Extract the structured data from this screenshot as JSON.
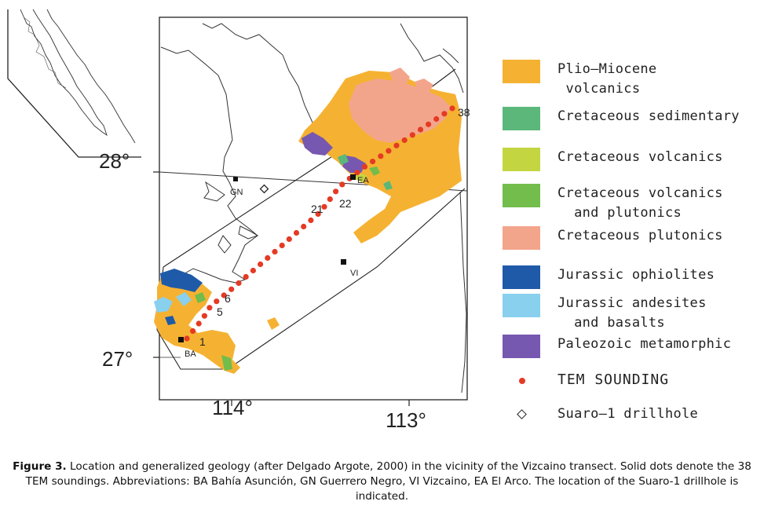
{
  "map": {
    "lat_labels": [
      "28°",
      "27°"
    ],
    "lon_labels": [
      "114°",
      "113°"
    ],
    "places": [
      {
        "abbr": "GN"
      },
      {
        "abbr": "EA"
      },
      {
        "abbr": "VI"
      },
      {
        "abbr": "BA"
      }
    ],
    "sounding_labels": [
      "1",
      "5",
      "6",
      "21",
      "22",
      "38"
    ],
    "sounding_count": 38
  },
  "legend": {
    "items": [
      {
        "label": "Plio–Miocene\n volcanics",
        "color": "#f5b232"
      },
      {
        "label": "Cretaceous sedimentary",
        "color": "#5bb87a"
      },
      {
        "label": "Cretaceous volcanics",
        "color": "#c3d641"
      },
      {
        "label": "Cretaceous volcanics\n  and plutonics",
        "color": "#72bd4c"
      },
      {
        "label": "Cretaceous plutonics",
        "color": "#f3a58c"
      },
      {
        "label": "Jurassic ophiolites",
        "color": "#1f5aa8"
      },
      {
        "label": "Jurassic andesites\n  and basalts",
        "color": "#88d0ee"
      },
      {
        "label": "Paleozoic metamorphic",
        "color": "#7758b0"
      }
    ],
    "tem_label": "TEM SOUNDING",
    "drillhole_label": "Suaro–1 drillhole"
  },
  "caption": {
    "label": "Figure 3.",
    "text": " Location and generalized geology (after Delgado Argote, 2000) in the vicinity of the Vizcaino transect. Solid dots denote the 38 TEM soundings. Abbreviations: BA Bahía Asunción, GN Guerrero Negro, VI Vizcaino, EA El Arco. The location of the Suaro-1 drillhole is indicated."
  }
}
